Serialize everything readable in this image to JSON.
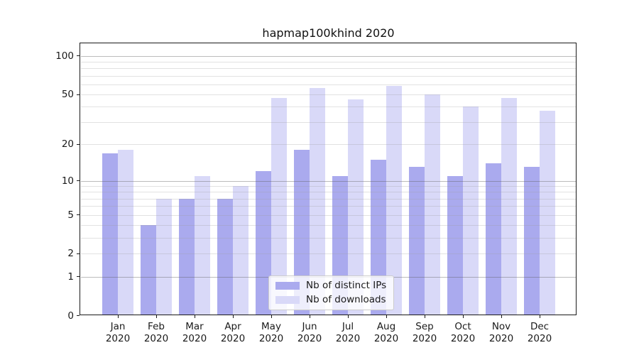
{
  "title": "hapmap100khind 2020",
  "chart_data": {
    "type": "bar",
    "title": "hapmap100khind 2020",
    "categories": [
      "Jan",
      "Feb",
      "Mar",
      "Apr",
      "May",
      "Jun",
      "Jul",
      "Aug",
      "Sep",
      "Oct",
      "Nov",
      "Dec"
    ],
    "x_year": "2020",
    "series": [
      {
        "name": "Nb of distinct IPs",
        "color": "#aaaaee",
        "values": [
          17,
          4,
          7,
          7,
          12,
          18,
          11,
          15,
          13,
          11,
          14,
          13
        ]
      },
      {
        "name": "Nb of downloads",
        "color": "#d9d9f8",
        "values": [
          18,
          7,
          11,
          9,
          47,
          56,
          46,
          58,
          50,
          40,
          47,
          37
        ]
      }
    ],
    "xlabel": "",
    "ylabel": "",
    "y_ticks": [
      100,
      50,
      20,
      10,
      5,
      2,
      1,
      0
    ],
    "ylim": [
      0,
      126
    ],
    "scale": "log1p",
    "grid": "on",
    "legend_position": "lower-center"
  }
}
